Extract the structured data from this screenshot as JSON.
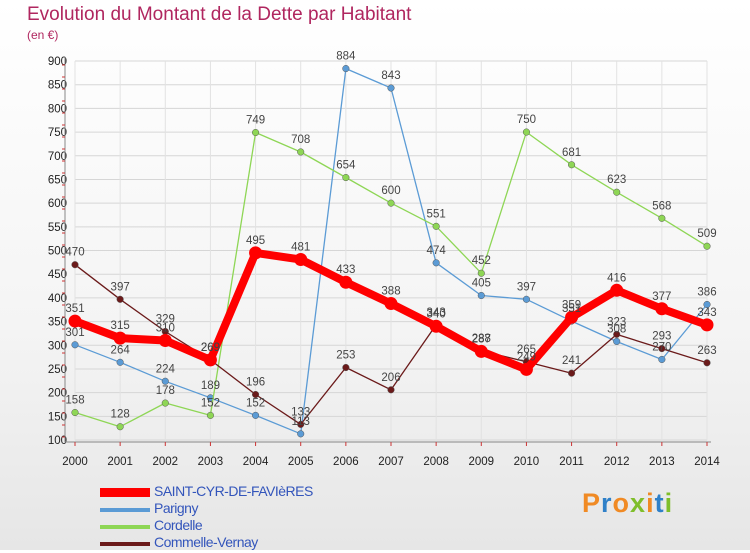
{
  "header": {
    "title": "Evolution du Montant de la Dette par Habitant",
    "unit": "(en €)"
  },
  "logo": {
    "text": "Proxiti",
    "colors": [
      "#f08a24",
      "#2f80c8",
      "#f08a24",
      "#7fbe2a",
      "#f08a24",
      "#2f80c8",
      "#7fbe2a"
    ]
  },
  "chart_data": {
    "type": "line",
    "title": "Evolution du Montant de la Dette par Habitant",
    "subtitle": "(en €)",
    "xlabel": "",
    "ylabel": "",
    "x": [
      "2000",
      "2001",
      "2002",
      "2003",
      "2004",
      "2005",
      "2006",
      "2007",
      "2008",
      "2009",
      "2010",
      "2011",
      "2012",
      "2013",
      "2014"
    ],
    "ylim": [
      100,
      900
    ],
    "yticks": [
      100,
      150,
      200,
      250,
      300,
      350,
      400,
      450,
      500,
      550,
      600,
      650,
      700,
      750,
      800,
      850,
      900
    ],
    "grid": true,
    "legend_position": "bottom-left",
    "series": [
      {
        "name": "SAINT-CYR-DE-FAVIèRES",
        "color": "#ff0000",
        "values": [
          351,
          315,
          310,
          269,
          495,
          481,
          433,
          388,
          340,
          287,
          249,
          359,
          416,
          377,
          343
        ]
      },
      {
        "name": "Parigny",
        "color": "#5b9bd5",
        "values": [
          301,
          264,
          224,
          189,
          152,
          113,
          884,
          843,
          474,
          405,
          397,
          351,
          308,
          270,
          386
        ]
      },
      {
        "name": "Cordelle",
        "color": "#8ed655",
        "values": [
          158,
          128,
          178,
          152,
          749,
          708,
          654,
          600,
          551,
          452,
          750,
          681,
          623,
          568,
          509
        ]
      },
      {
        "name": "Commelle-Vernay",
        "color": "#6b1a1a",
        "values": [
          470,
          397,
          329,
          269,
          196,
          133,
          253,
          206,
          343,
          288,
          265,
          241,
          323,
          293,
          263
        ]
      }
    ]
  }
}
